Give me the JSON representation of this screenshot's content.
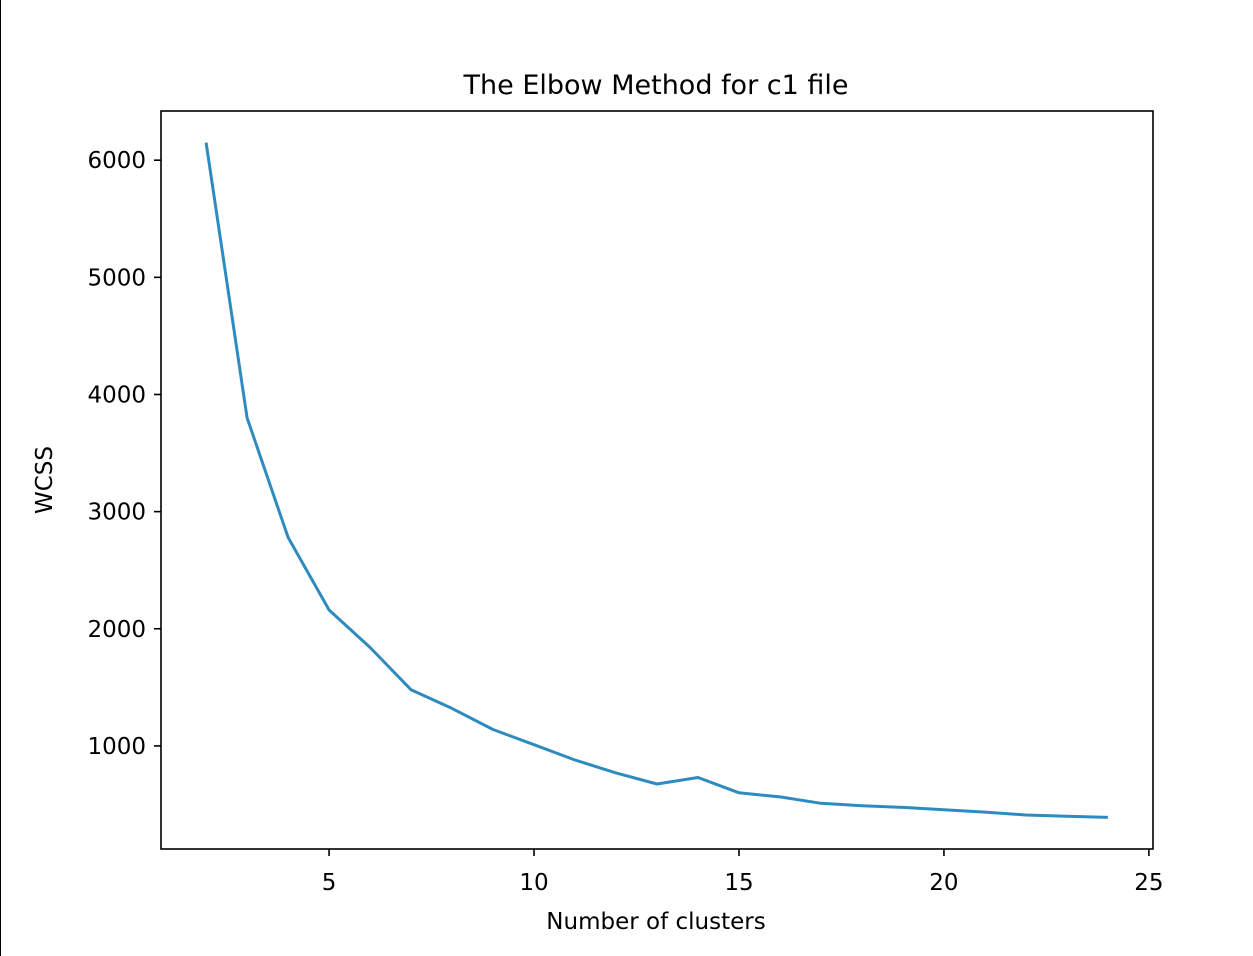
{
  "chart_data": {
    "type": "line",
    "title": "The Elbow Method for c1 file",
    "xlabel": "Number of clusters",
    "ylabel": "WCSS",
    "xlim": [
      0.9,
      25.1
    ],
    "ylim": [
      120,
      6420
    ],
    "xticks": [
      5,
      10,
      15,
      20,
      25
    ],
    "yticks": [
      1000,
      2000,
      3000,
      4000,
      5000,
      6000
    ],
    "grid": false,
    "series": [
      {
        "color": "#2e8bc0",
        "x": [
          2,
          3,
          4,
          5,
          6,
          7,
          8,
          9,
          10,
          11,
          12,
          13,
          14,
          15,
          16,
          17,
          18,
          19,
          20,
          21,
          22,
          23,
          24
        ],
        "y": [
          6150,
          3800,
          2780,
          2160,
          1840,
          1480,
          1320,
          1140,
          1010,
          880,
          770,
          675,
          730,
          600,
          565,
          510,
          490,
          475,
          455,
          435,
          410,
          400,
          390
        ]
      }
    ]
  }
}
